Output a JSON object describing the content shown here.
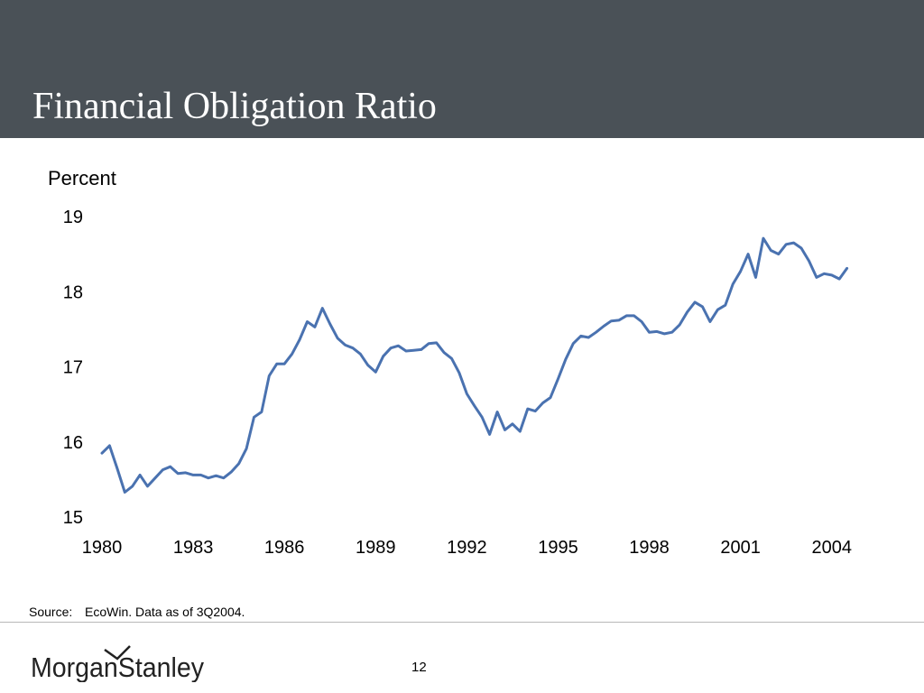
{
  "slide": {
    "title": "Financial Obligation Ratio",
    "source_label": "Source:",
    "source_text": "EcoWin. Data as of 3Q2004.",
    "logo_text": "MorganStanley",
    "page_number": "12"
  },
  "colors": {
    "header_bg": "#4a5157",
    "series_line": "#4a72b0"
  },
  "chart_data": {
    "type": "line",
    "title": "",
    "ylabel": "Percent",
    "xlabel": "",
    "xlim": [
      1980,
      2004.75
    ],
    "ylim": [
      15,
      19
    ],
    "x_ticks": [
      "1980",
      "1983",
      "1986",
      "1989",
      "1992",
      "1995",
      "1998",
      "2001",
      "2004"
    ],
    "y_ticks": [
      "19",
      "18",
      "17",
      "16",
      "15"
    ],
    "grid": false,
    "legend": "none",
    "series": [
      {
        "name": "",
        "x": [
          1980.0,
          1980.25,
          1980.5,
          1980.75,
          1981.0,
          1981.25,
          1981.5,
          1981.75,
          1982.0,
          1982.25,
          1982.5,
          1982.75,
          1983.0,
          1983.25,
          1983.5,
          1983.75,
          1984.0,
          1984.25,
          1984.5,
          1984.75,
          1985.0,
          1985.25,
          1985.5,
          1985.75,
          1986.0,
          1986.25,
          1986.5,
          1986.75,
          1987.0,
          1987.25,
          1987.5,
          1987.75,
          1988.0,
          1988.25,
          1988.5,
          1988.75,
          1989.0,
          1989.25,
          1989.5,
          1989.75,
          1990.0,
          1990.25,
          1990.5,
          1990.75,
          1991.0,
          1991.25,
          1991.5,
          1991.75,
          1992.0,
          1992.25,
          1992.5,
          1992.75,
          1993.0,
          1993.25,
          1993.5,
          1993.75,
          1994.0,
          1994.25,
          1994.5,
          1994.75,
          1995.0,
          1995.25,
          1995.5,
          1995.75,
          1996.0,
          1996.25,
          1996.5,
          1996.75,
          1997.0,
          1997.25,
          1997.5,
          1997.75,
          1998.0,
          1998.25,
          1998.5,
          1998.75,
          1999.0,
          1999.25,
          1999.5,
          1999.75,
          2000.0,
          2000.25,
          2000.5,
          2000.75,
          2001.0,
          2001.25,
          2001.5,
          2001.75,
          2002.0,
          2002.25,
          2002.5,
          2002.75,
          2003.0,
          2003.25,
          2003.5,
          2003.75,
          2004.0,
          2004.25,
          2004.5
        ],
        "values": [
          15.85,
          15.95,
          15.65,
          15.33,
          15.41,
          15.56,
          15.41,
          15.52,
          15.63,
          15.67,
          15.58,
          15.59,
          15.56,
          15.56,
          15.52,
          15.55,
          15.52,
          15.6,
          15.71,
          15.91,
          16.33,
          16.4,
          16.88,
          17.04,
          17.04,
          17.17,
          17.36,
          17.6,
          17.53,
          17.78,
          17.57,
          17.38,
          17.29,
          17.25,
          17.17,
          17.02,
          16.93,
          17.14,
          17.25,
          17.28,
          17.21,
          17.22,
          17.23,
          17.31,
          17.32,
          17.19,
          17.11,
          16.92,
          16.64,
          16.48,
          16.33,
          16.1,
          16.4,
          16.16,
          16.24,
          16.14,
          16.44,
          16.41,
          16.52,
          16.59,
          16.84,
          17.1,
          17.31,
          17.41,
          17.39,
          17.46,
          17.54,
          17.61,
          17.62,
          17.68,
          17.68,
          17.6,
          17.46,
          17.47,
          17.44,
          17.46,
          17.56,
          17.73,
          17.86,
          17.8,
          17.6,
          17.76,
          17.82,
          18.1,
          18.27,
          18.5,
          18.19,
          18.71,
          18.55,
          18.5,
          18.63,
          18.65,
          18.58,
          18.41,
          18.19,
          18.24,
          18.22,
          18.17,
          18.31
        ]
      }
    ]
  }
}
